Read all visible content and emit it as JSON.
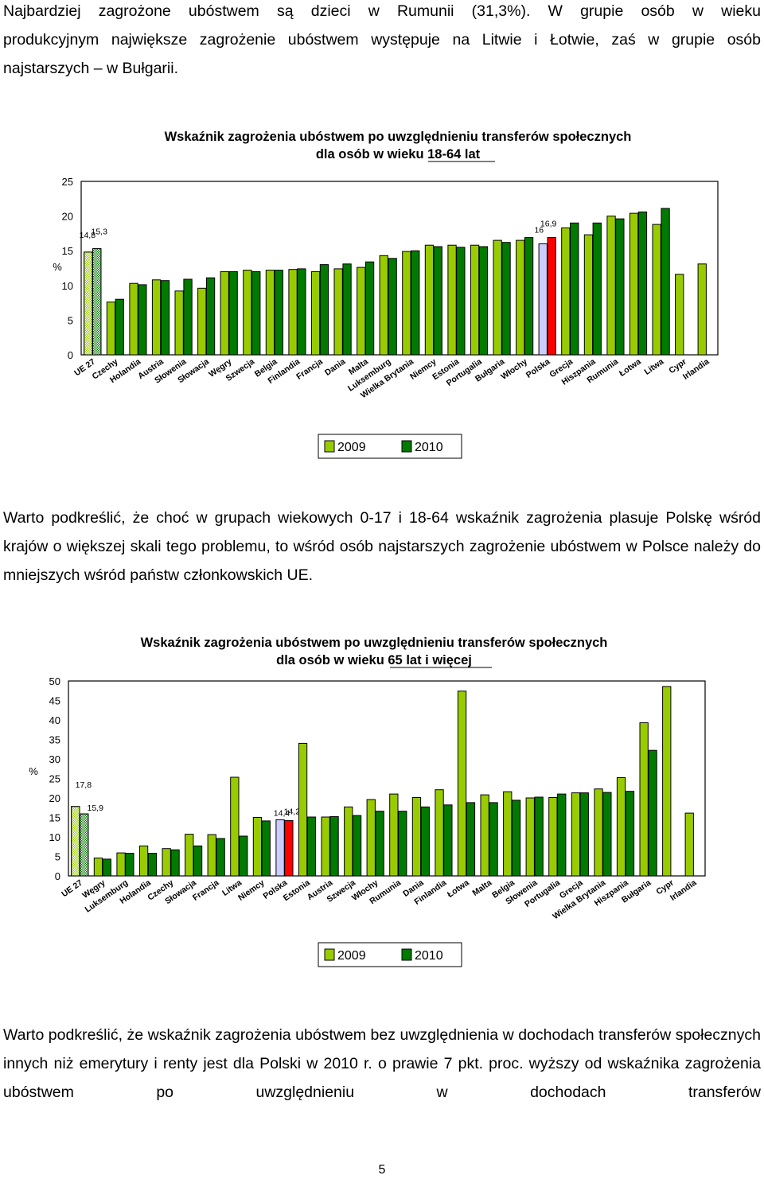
{
  "intro_lines": [
    "Najbardziej zagrożone ubóstwem są dzieci w Rumunii (31,3%). W grupie osób w wieku",
    "produkcyjnym największe zagrożenie ubóstwem występuje na Litwie i Łotwie, zaś w grupie osób",
    "najstarszych – w Bułgarii."
  ],
  "para2": "Warto podkreślić, że choć w grupach wiekowych 0-17 i 18-64 wskaźnik zagrożenia plasuje Polskę wśród krajów o większej skali tego problemu, to wśród osób najstarszych zagrożenie ubóstwem w Polsce należy do mniejszych wśród państw członkowskich UE.",
  "para3": "Warto podkreślić, że wskaźnik zagrożenia ubóstwem bez uwzględnienia w dochodach transferów społecznych innych niż emerytury i renty jest dla Polski w 2010 r. o prawie 7 pkt. proc. wyższy od wskaźnika zagrożenia ubóstwem po uwzględnieniu w dochodach transferów",
  "page_number": "5",
  "colors": {
    "y2009": "#99CC00",
    "y2010": "#007A00",
    "polska2009": "#CCCCFF",
    "polska2010": "#FF0000"
  },
  "chart_data": [
    {
      "type": "bar",
      "title_lines": [
        "Wskaźnik zagrożenia ubóstwem po uwzględnieniu transferów społecznych",
        "dla osób w wieku 18-64 lat"
      ],
      "ylabel": "%",
      "ylim": [
        0,
        25
      ],
      "yticks": [
        0,
        5,
        10,
        15,
        20,
        25
      ],
      "legend": "bottom",
      "categories": [
        "UE 27",
        "Czechy",
        "Holandia",
        "Austria",
        "Słowenia",
        "Słowacja",
        "Węgry",
        "Szwecja",
        "Belgia",
        "Finlandia",
        "Francja",
        "Dania",
        "Malta",
        "Luksemburg",
        "Wielka Brytania",
        "Niemcy",
        "Estonia",
        "Portugalia",
        "Bułgaria",
        "Włochy",
        "Polska",
        "Grecja",
        "Hiszpania",
        "Rumunia",
        "Łotwa",
        "Litwa",
        "Cypr",
        "Irlandia"
      ],
      "series": [
        {
          "name": "2009",
          "values": [
            14.8,
            7.6,
            10.3,
            10.8,
            9.2,
            9.6,
            12.0,
            12.2,
            12.2,
            12.3,
            12.0,
            12.4,
            12.6,
            14.3,
            14.9,
            15.8,
            15.8,
            15.8,
            16.5,
            16.5,
            16.0,
            18.3,
            17.3,
            20.0,
            20.4,
            18.8,
            11.6,
            13.1
          ]
        },
        {
          "name": "2010",
          "values": [
            15.3,
            8.0,
            10.1,
            10.7,
            10.9,
            11.1,
            12.0,
            12.0,
            12.2,
            12.4,
            13.0,
            13.1,
            13.4,
            13.9,
            15.0,
            15.6,
            15.5,
            15.6,
            16.2,
            16.9,
            16.9,
            19.0,
            19.0,
            19.6,
            20.6,
            21.1,
            null,
            null
          ]
        }
      ],
      "data_labels": {
        "UE 27": [
          "14,8",
          "15,3"
        ],
        "Polska": [
          "16",
          "16,9"
        ]
      }
    },
    {
      "type": "bar",
      "title_lines": [
        "Wskaźnik zagrożenia ubóstwem po uwzględnieniu transferów społecznych",
        "dla osób w wieku 65 lat i więcej"
      ],
      "ylabel": "%",
      "ylim": [
        0,
        50
      ],
      "yticks": [
        0,
        5,
        10,
        15,
        20,
        25,
        30,
        35,
        40,
        45,
        50
      ],
      "legend": "bottom",
      "categories": [
        "UE 27",
        "Węgry",
        "Luksemburg",
        "Holandia",
        "Czechy",
        "Słowacja",
        "Francja",
        "Litwa",
        "Niemcy",
        "Polska",
        "Estonia",
        "Austria",
        "Szwecja",
        "Włochy",
        "Rumunia",
        "Dania",
        "Finlandia",
        "Łotwa",
        "Malta",
        "Belgia",
        "Słowenia",
        "Portugalia",
        "Grecja",
        "Wielka Brytania",
        "Hiszpania",
        "Bułgaria",
        "Cypr",
        "Irlandia"
      ],
      "series": [
        {
          "name": "2009",
          "values": [
            17.8,
            4.6,
            5.9,
            7.7,
            7.0,
            10.7,
            10.6,
            25.3,
            15.0,
            14.4,
            34.0,
            15.1,
            17.7,
            19.6,
            21.0,
            20.1,
            22.1,
            47.4,
            20.8,
            21.6,
            20.0,
            20.1,
            21.3,
            22.3,
            25.2,
            39.3,
            48.6,
            16.1
          ]
        },
        {
          "name": "2010",
          "values": [
            15.9,
            4.3,
            5.8,
            5.8,
            6.7,
            7.7,
            9.6,
            10.2,
            14.1,
            14.2,
            15.1,
            15.2,
            15.5,
            16.6,
            16.6,
            17.7,
            18.2,
            18.8,
            18.8,
            19.4,
            20.2,
            21.0,
            21.3,
            21.4,
            21.7,
            32.2,
            null,
            null
          ]
        }
      ],
      "data_labels": {
        "UE 27": [
          "17,8",
          "15,9"
        ],
        "Polska": [
          "14,4",
          "14,2"
        ]
      }
    }
  ]
}
